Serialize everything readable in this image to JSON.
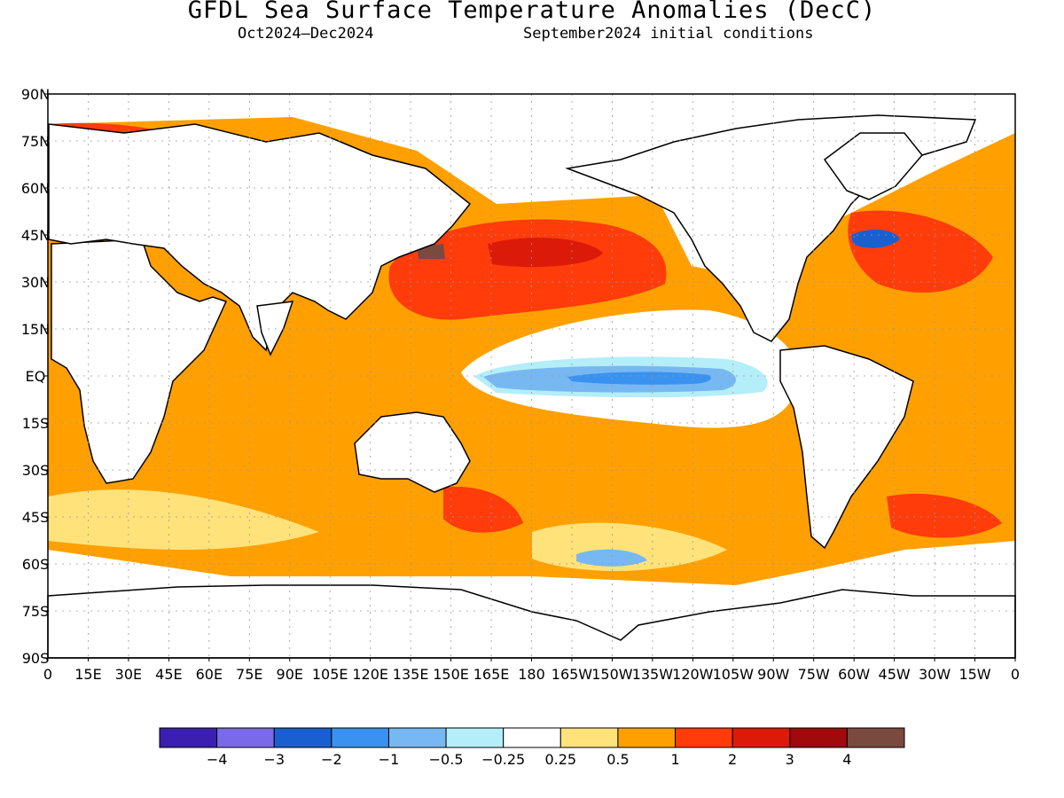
{
  "title": "GFDL Sea Surface Temperature Anomalies (DecC)",
  "subtitle_left": "Oct2024–Dec2024",
  "subtitle_right": "September2024 initial conditions",
  "lat_labels": [
    "90N",
    "75N",
    "60N",
    "45N",
    "30N",
    "15N",
    "EQ",
    "15S",
    "30S",
    "45S",
    "60S",
    "75S",
    "90S"
  ],
  "lon_labels": [
    "0",
    "15E",
    "30E",
    "45E",
    "60E",
    "75E",
    "90E",
    "105E",
    "120E",
    "135E",
    "150E",
    "165E",
    "180",
    "165W",
    "150W",
    "135W",
    "120W",
    "105W",
    "90W",
    "75W",
    "60W",
    "45W",
    "30W",
    "15W",
    "0"
  ],
  "colorbar": {
    "colors": [
      "#3a1fb0",
      "#7a6ae8",
      "#1a5fd0",
      "#3a92f0",
      "#78b8f2",
      "#b4eef8",
      "#ffffff",
      "#ffe27a",
      "#ffa000",
      "#ff3c0a",
      "#dc1a0a",
      "#a00a0a",
      "#7a4a3e"
    ],
    "labels": [
      "−4",
      "−3",
      "−2",
      "−1",
      "−0.5",
      "−0.25",
      "0.25",
      "0.5",
      "1",
      "2",
      "3",
      "4"
    ]
  }
}
